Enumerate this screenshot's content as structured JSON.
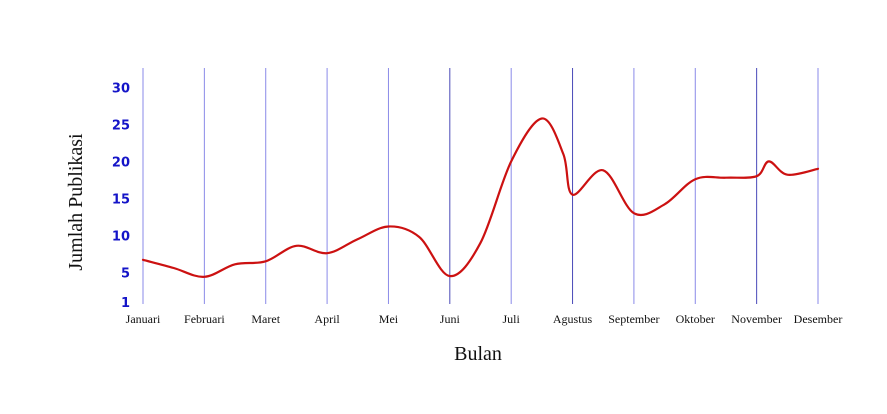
{
  "chart_data": {
    "type": "line",
    "title": "",
    "xlabel": "Bulan",
    "ylabel": "Jumlah Publikasi",
    "categories": [
      "Januari",
      "Februari",
      "Maret",
      "April",
      "Mei",
      "Juni",
      "Juli",
      "Agustus",
      "September",
      "Oktober",
      "November",
      "Desember"
    ],
    "yticks": [
      1,
      5,
      10,
      15,
      20,
      25,
      30
    ],
    "ylim": [
      1,
      30
    ],
    "grid": "vertical",
    "legend": "none",
    "series": [
      {
        "color": "#cc1111",
        "points": [
          [
            0.0,
            6.7
          ],
          [
            0.5,
            5.6
          ],
          [
            1.0,
            4.4
          ],
          [
            1.5,
            6.1
          ],
          [
            2.0,
            6.5
          ],
          [
            2.5,
            8.6
          ],
          [
            3.0,
            7.6
          ],
          [
            3.5,
            9.5
          ],
          [
            4.0,
            11.2
          ],
          [
            4.5,
            9.8
          ],
          [
            5.0,
            4.5
          ],
          [
            5.5,
            9.0
          ],
          [
            6.0,
            20.0
          ],
          [
            6.5,
            25.8
          ],
          [
            6.85,
            21.0
          ],
          [
            7.0,
            15.5
          ],
          [
            7.5,
            18.8
          ],
          [
            8.0,
            13.0
          ],
          [
            8.5,
            14.2
          ],
          [
            9.0,
            17.6
          ],
          [
            9.5,
            17.8
          ],
          [
            10.0,
            18.0
          ],
          [
            10.2,
            20.0
          ],
          [
            10.5,
            18.2
          ],
          [
            11.0,
            19.0
          ]
        ]
      }
    ],
    "gridline_colors": [
      "#8a8ae8",
      "#4a4ab8"
    ]
  }
}
